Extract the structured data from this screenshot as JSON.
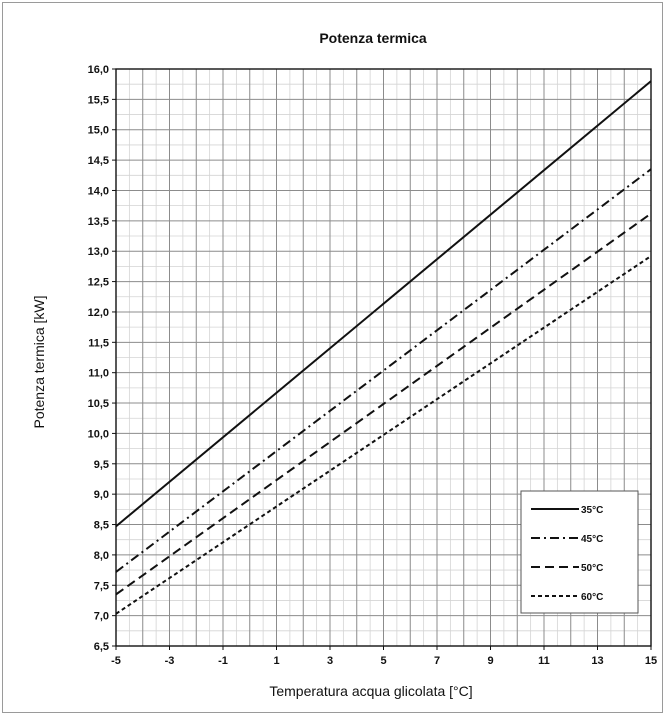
{
  "chart_data": {
    "type": "line",
    "title": "Potenza termica",
    "xlabel": "Temperatura acqua glicolata [°C]",
    "ylabel": "Potenza termica [kW]",
    "xlim": [
      -5,
      15
    ],
    "ylim": [
      6.5,
      16.0
    ],
    "x_ticks": [
      -5,
      -3,
      -1,
      1,
      3,
      5,
      7,
      9,
      11,
      13,
      15
    ],
    "x_tick_labels": [
      "-5",
      "-3",
      "-1",
      "1",
      "3",
      "5",
      "7",
      "9",
      "11",
      "13",
      "15"
    ],
    "y_ticks": [
      6.5,
      7.0,
      7.5,
      8.0,
      8.5,
      9.0,
      9.5,
      10.0,
      10.5,
      11.0,
      11.5,
      12.0,
      12.5,
      13.0,
      13.5,
      14.0,
      14.5,
      15.0,
      15.5,
      16.0
    ],
    "y_tick_labels": [
      "6,5",
      "7,0",
      "7,5",
      "8,0",
      "8,5",
      "9,0",
      "9,5",
      "10,0",
      "10,5",
      "11,0",
      "11,5",
      "12,0",
      "12,5",
      "13,0",
      "13,5",
      "14,0",
      "14,5",
      "15,0",
      "15,5",
      "16,0"
    ],
    "grid": true,
    "legend_position": "bottom-right",
    "x": [
      -5,
      15
    ],
    "series": [
      {
        "name": "35°C",
        "values": [
          8.47,
          15.8
        ],
        "dash": "solid"
      },
      {
        "name": "45°C",
        "values": [
          7.72,
          14.35
        ],
        "dash": "dash-dot"
      },
      {
        "name": "50°C",
        "values": [
          7.35,
          13.62
        ],
        "dash": "dashed"
      },
      {
        "name": "60°C",
        "values": [
          7.03,
          12.92
        ],
        "dash": "short-dash"
      }
    ],
    "colors": {
      "line": "#111111",
      "grid_major": "#8c8c8c",
      "grid_minor": "#d4d4d4"
    }
  }
}
